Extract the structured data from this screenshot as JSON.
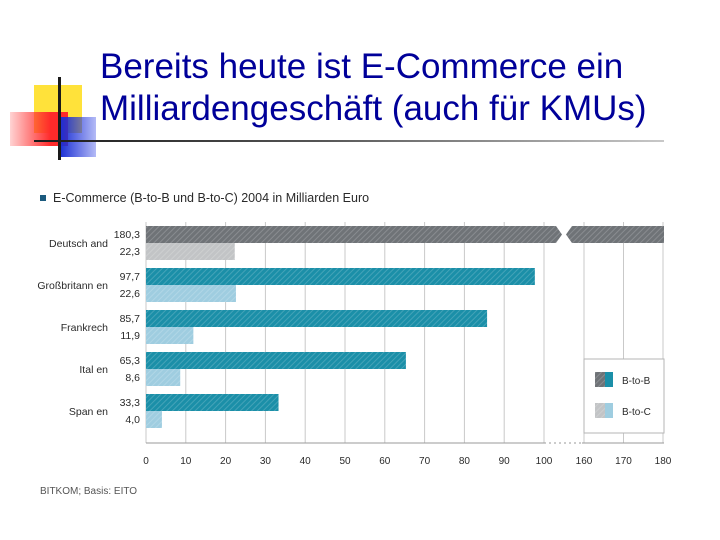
{
  "slide": {
    "title_line1": "Bereits heute ist E-Commerce ein",
    "title_line2": "Milliardengeschäft (auch für KMUs)"
  },
  "chart_data": {
    "type": "bar",
    "orientation": "horizontal",
    "title": "E-Commerce (B-to-B und B-to-C) 2004 in Milliarden Euro",
    "categories": [
      "Deutschland",
      "Großbritannien",
      "Frankreich",
      "Italien",
      "Spanien"
    ],
    "category_labels": [
      "Deutsch and",
      "Großbritann en",
      "Frankrech",
      "Ital en",
      "Span en"
    ],
    "series": [
      {
        "name": "B-to-B",
        "values": [
          180.3,
          97.7,
          85.7,
          65.3,
          33.3
        ],
        "value_labels": [
          "180,3",
          "97,7",
          "85,7",
          "65,3",
          "33,3"
        ]
      },
      {
        "name": "B-to-C",
        "values": [
          22.3,
          22.6,
          11.9,
          8.6,
          4.0
        ],
        "value_labels": [
          "22,3",
          "22,6",
          "11,9",
          "8,6",
          "4,0"
        ]
      }
    ],
    "xticks": [
      "0",
      "10",
      "20",
      "30",
      "40",
      "50",
      "60",
      "70",
      "80",
      "90",
      "100",
      "160",
      "170",
      "180"
    ],
    "axis_break": [
      100,
      160
    ],
    "xlim": [
      0,
      180
    ],
    "grid": true,
    "legend_position": "bottom-right",
    "source": "BITKOM; Basis: EITO",
    "colors": {
      "title_blue": "#000099",
      "b2b_teal": "#1b8fa8",
      "b2c_light": "#9fcde0",
      "deutschland_b2b": "#6f7377",
      "deutschland_b2c": "#c2c4c6",
      "grid": "#c9c9c9",
      "text": "#2a2a2a",
      "bullet": "#1b5a7e"
    }
  }
}
